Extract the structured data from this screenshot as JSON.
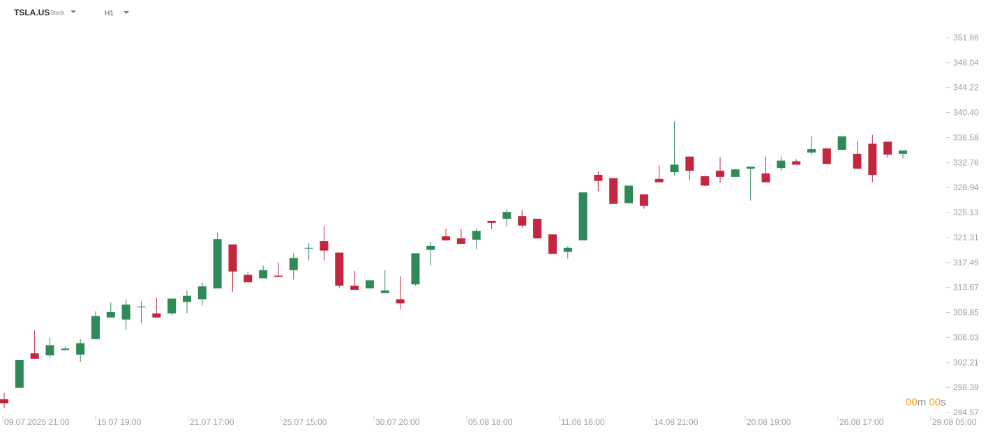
{
  "header": {
    "symbol": "TSLA.US",
    "instrument_type": "Stock",
    "timeframe": "H1"
  },
  "countdown": {
    "minutes": "00",
    "minutes_unit": "m",
    "seconds": "00",
    "seconds_unit": "s"
  },
  "colors": {
    "up": "#2e8a57",
    "down": "#c4263f",
    "axis_text": "#9aa0a6",
    "countdown": "#f2a31b"
  },
  "chart_data": {
    "type": "candlestick",
    "title": "",
    "xlabel": "",
    "ylabel": "",
    "ylim": [
      294.57,
      353.5
    ],
    "y_ticks": [
      "351.86",
      "348.04",
      "344.22",
      "340.40",
      "336.58",
      "332.76",
      "328.94",
      "325.13",
      "321.31",
      "317.49",
      "313.67",
      "309.85",
      "306.03",
      "302.21",
      "298.39",
      "294.57"
    ],
    "x_ticks": [
      "09.07.2025 21:00",
      "15.07 19:00",
      "21.07 17:00",
      "25.07 15:00",
      "30.07 20:00",
      "05.08 18:00",
      "11.08 16:00",
      "14.08 21:00",
      "20.08 19:00",
      "26.08 17:00",
      "29.08 05:00"
    ],
    "candles": [
      [
        296.3,
        297.3,
        295.0,
        295.7
      ],
      [
        298.0,
        300.0,
        299.3,
        302.1
      ],
      [
        303.1,
        303.7,
        306.5,
        302.3
      ],
      [
        302.8,
        305.4,
        302.4,
        304.3
      ],
      [
        303.6,
        304.1,
        303.5,
        303.8
      ],
      [
        302.9,
        305.2,
        301.8,
        304.6
      ],
      [
        305.2,
        309.3,
        305.6,
        308.6
      ],
      [
        308.4,
        310.6,
        309.6,
        309.2
      ],
      [
        308.1,
        311.1,
        306.6,
        310.3
      ],
      [
        310.0,
        310.8,
        307.6,
        310.0
      ],
      [
        309.0,
        311.3,
        309.4,
        308.4
      ],
      [
        309.0,
        310.7,
        308.7,
        311.2
      ],
      [
        310.7,
        312.4,
        309.0,
        311.6
      ],
      [
        311.1,
        313.6,
        310.2,
        313.0
      ],
      [
        312.7,
        321.0,
        316.0,
        320.0
      ],
      [
        319.2,
        315.7,
        312.2,
        315.2
      ],
      [
        314.7,
        315.1,
        314.8,
        313.6
      ],
      [
        314.2,
        316.1,
        314.2,
        315.4
      ],
      [
        314.6,
        316.5,
        315.2,
        314.4
      ],
      [
        315.4,
        317.9,
        314.0,
        317.2
      ],
      [
        318.6,
        319.4,
        316.8,
        318.7
      ],
      [
        319.7,
        321.9,
        316.8,
        318.3
      ],
      [
        318.0,
        313.7,
        312.8,
        313.1
      ],
      [
        313.1,
        313.5,
        315.3,
        312.5
      ],
      [
        312.7,
        313.9,
        313.5,
        313.9
      ],
      [
        312.0,
        315.4,
        313.2,
        312.4
      ],
      [
        311.1,
        314.5,
        309.6,
        310.5
      ],
      [
        313.3,
        317.9,
        313.1,
        317.9
      ],
      [
        318.4,
        319.6,
        316.1,
        319.0
      ],
      [
        320.4,
        319.9,
        321.5,
        319.8
      ],
      [
        320.1,
        320.3,
        321.5,
        319.3
      ],
      [
        319.9,
        321.6,
        318.5,
        321.2
      ],
      [
        322.7,
        321.8,
        321.5,
        322.4
      ],
      [
        323.0,
        324.4,
        321.8,
        324.0
      ],
      [
        323.4,
        324.3,
        321.7,
        322.0
      ],
      [
        323.0,
        321.7,
        320.4,
        320.1
      ],
      [
        320.7,
        318.6,
        319.8,
        317.8
      ],
      [
        318.1,
        318.9,
        317.1,
        318.7
      ],
      [
        319.8,
        324.8,
        322.9,
        326.9
      ],
      [
        329.5,
        330.0,
        327.1,
        328.6
      ],
      [
        329.0,
        326.9,
        327.3,
        325.2
      ],
      [
        325.3,
        326.1,
        325.5,
        327.9
      ],
      [
        326.6,
        324.5,
        326.4,
        324.9
      ],
      [
        328.9,
        329.5,
        330.9,
        328.4
      ],
      [
        329.9,
        337.4,
        329.4,
        331.0
      ],
      [
        332.2,
        328.7,
        329.0,
        330.1
      ],
      [
        329.3,
        327.8,
        328.9,
        327.9
      ],
      [
        330.1,
        328.3,
        332.1,
        329.2
      ],
      [
        329.2,
        330.4,
        330.0,
        330.3
      ],
      [
        330.4,
        325.7,
        329.5,
        330.7
      ],
      [
        329.7,
        328.6,
        332.2,
        328.4
      ],
      [
        330.5,
        332.2,
        330.1,
        331.6
      ],
      [
        331.5,
        331.8,
        331.0,
        331.0
      ],
      [
        332.8,
        332.5,
        335.2,
        333.3
      ],
      [
        333.4,
        332.8,
        331.2,
        331.1
      ],
      [
        333.2,
        335.1,
        334.8,
        335.2
      ],
      [
        332.6,
        334.1,
        334.5,
        330.4
      ],
      [
        334.1,
        335.4,
        328.4,
        329.5
      ],
      [
        334.4,
        334.4,
        332.0,
        332.5
      ],
      [
        332.6,
        332.4,
        331.9,
        333.1
      ]
    ]
  }
}
